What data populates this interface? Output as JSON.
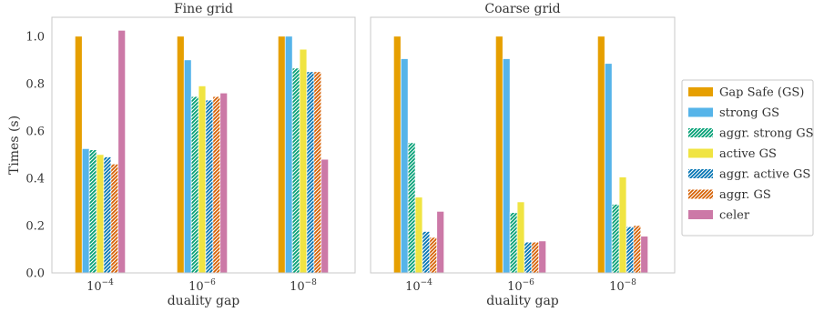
{
  "chart_data": {
    "type": "bar",
    "ylabel": "Times (s)",
    "ylim": [
      0,
      1.08
    ],
    "yticks": [
      "0.0",
      "0.2",
      "0.4",
      "0.6",
      "0.8",
      "1.0"
    ],
    "ytick_values": [
      0,
      0.2,
      0.4,
      0.6,
      0.8,
      1.0
    ],
    "xlabel": "duality gap",
    "categories": [
      {
        "base": "10",
        "exp": "−4"
      },
      {
        "base": "10",
        "exp": "−6"
      },
      {
        "base": "10",
        "exp": "−8"
      }
    ],
    "grid": false,
    "legend_position": "right",
    "series": [
      {
        "name": "Gap Safe (GS)",
        "color": "#E69F00",
        "hatch": false
      },
      {
        "name": "strong GS",
        "color": "#56B4E9",
        "hatch": false
      },
      {
        "name": "aggr. strong GS",
        "color": "#009E73",
        "hatch": true
      },
      {
        "name": "active GS",
        "color": "#F0E442",
        "hatch": false
      },
      {
        "name": "aggr. active GS",
        "color": "#0072B2",
        "hatch": true
      },
      {
        "name": "aggr. GS",
        "color": "#D55E00",
        "hatch": true
      },
      {
        "name": "celer",
        "color": "#CC79A7",
        "hatch": false
      }
    ],
    "panels": [
      {
        "title": "Fine grid",
        "values": [
          [
            1.0,
            0.525,
            0.52,
            0.5,
            0.49,
            0.46,
            1.025
          ],
          [
            1.0,
            0.9,
            0.745,
            0.79,
            0.73,
            0.745,
            0.76
          ],
          [
            1.0,
            1.0,
            0.865,
            0.945,
            0.85,
            0.85,
            0.48
          ]
        ]
      },
      {
        "title": "Coarse grid",
        "values": [
          [
            1.0,
            0.905,
            0.55,
            0.32,
            0.175,
            0.15,
            0.26
          ],
          [
            1.0,
            0.905,
            0.255,
            0.3,
            0.13,
            0.13,
            0.135
          ],
          [
            1.0,
            0.885,
            0.29,
            0.405,
            0.195,
            0.2,
            0.155
          ]
        ]
      }
    ]
  }
}
